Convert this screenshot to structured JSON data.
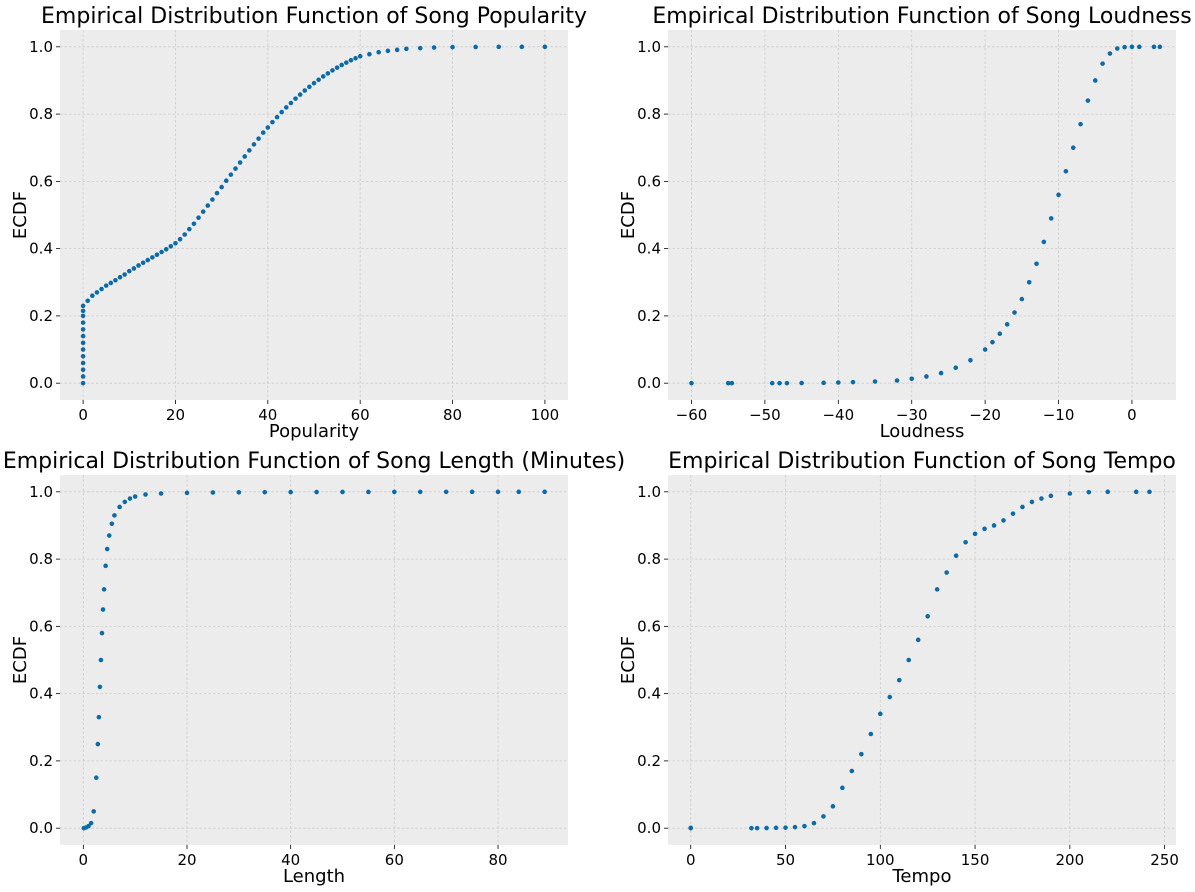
{
  "chart_data": [
    {
      "type": "scatter",
      "title": "Empirical Distribution Function of Song Popularity",
      "xlabel": "Popularity",
      "ylabel": "ECDF",
      "xlim": [
        -5,
        105
      ],
      "ylim": [
        -0.05,
        1.05
      ],
      "xticks": [
        0,
        20,
        40,
        60,
        80,
        100
      ],
      "xtick_labels": [
        "0",
        "20",
        "40",
        "60",
        "80",
        "100"
      ],
      "yticks": [
        0,
        0.2,
        0.4,
        0.6,
        0.8,
        1.0
      ],
      "ytick_labels": [
        "0.0",
        "0.2",
        "0.4",
        "0.6",
        "0.8",
        "1.0"
      ],
      "grid": true,
      "color": "#0d6aa8",
      "points": [
        [
          0,
          0
        ],
        [
          0,
          0.02
        ],
        [
          0,
          0.04
        ],
        [
          0,
          0.06
        ],
        [
          0,
          0.08
        ],
        [
          0,
          0.1
        ],
        [
          0,
          0.12
        ],
        [
          0,
          0.14
        ],
        [
          0,
          0.16
        ],
        [
          0,
          0.18
        ],
        [
          0,
          0.2
        ],
        [
          0,
          0.215
        ],
        [
          0,
          0.23
        ],
        [
          1,
          0.245
        ],
        [
          2,
          0.26
        ],
        [
          3,
          0.27
        ],
        [
          4,
          0.28
        ],
        [
          5,
          0.29
        ],
        [
          6,
          0.298
        ],
        [
          7,
          0.306
        ],
        [
          8,
          0.315
        ],
        [
          9,
          0.323
        ],
        [
          10,
          0.333
        ],
        [
          11,
          0.341
        ],
        [
          12,
          0.35
        ],
        [
          13,
          0.358
        ],
        [
          14,
          0.366
        ],
        [
          15,
          0.374
        ],
        [
          16,
          0.382
        ],
        [
          17,
          0.39
        ],
        [
          18,
          0.398
        ],
        [
          19,
          0.407
        ],
        [
          20,
          0.416
        ],
        [
          21,
          0.428
        ],
        [
          22,
          0.442
        ],
        [
          23,
          0.458
        ],
        [
          24,
          0.474
        ],
        [
          25,
          0.492
        ],
        [
          26,
          0.51
        ],
        [
          27,
          0.528
        ],
        [
          28,
          0.546
        ],
        [
          29,
          0.565
        ],
        [
          30,
          0.583
        ],
        [
          31,
          0.602
        ],
        [
          32,
          0.62
        ],
        [
          33,
          0.638
        ],
        [
          34,
          0.656
        ],
        [
          35,
          0.674
        ],
        [
          36,
          0.692
        ],
        [
          37,
          0.71
        ],
        [
          38,
          0.727
        ],
        [
          39,
          0.745
        ],
        [
          40,
          0.76
        ],
        [
          41,
          0.776
        ],
        [
          42,
          0.791
        ],
        [
          43,
          0.806
        ],
        [
          44,
          0.82
        ],
        [
          45,
          0.833
        ],
        [
          46,
          0.846
        ],
        [
          47,
          0.858
        ],
        [
          48,
          0.87
        ],
        [
          49,
          0.881
        ],
        [
          50,
          0.892
        ],
        [
          51,
          0.902
        ],
        [
          52,
          0.912
        ],
        [
          53,
          0.921
        ],
        [
          54,
          0.93
        ],
        [
          55,
          0.938
        ],
        [
          56,
          0.946
        ],
        [
          57,
          0.953
        ],
        [
          58,
          0.96
        ],
        [
          59,
          0.966
        ],
        [
          60,
          0.972
        ],
        [
          62,
          0.978
        ],
        [
          64,
          0.984
        ],
        [
          66,
          0.988
        ],
        [
          68,
          0.991
        ],
        [
          70,
          0.994
        ],
        [
          73,
          0.996
        ],
        [
          76,
          0.998
        ],
        [
          80,
          0.999
        ],
        [
          85,
          0.9995
        ],
        [
          90,
          1.0
        ],
        [
          95,
          1.0
        ],
        [
          100,
          1.0
        ]
      ]
    },
    {
      "type": "scatter",
      "title": "Empirical Distribution Function of Song Loudness",
      "xlabel": "Loudness",
      "ylabel": "ECDF",
      "xlim": [
        -63.2,
        6.0
      ],
      "ylim": [
        -0.05,
        1.05
      ],
      "xticks": [
        -60,
        -50,
        -40,
        -30,
        -20,
        -10,
        0
      ],
      "xtick_labels": [
        "−60",
        "−50",
        "−40",
        "−30",
        "−20",
        "−10",
        "0"
      ],
      "yticks": [
        0,
        0.2,
        0.4,
        0.6,
        0.8,
        1.0
      ],
      "ytick_labels": [
        "0.0",
        "0.2",
        "0.4",
        "0.6",
        "0.8",
        "1.0"
      ],
      "grid": true,
      "color": "#0d6aa8",
      "points": [
        [
          -60,
          0
        ],
        [
          -55,
          0
        ],
        [
          -54.5,
          0
        ],
        [
          -49,
          0
        ],
        [
          -48,
          0
        ],
        [
          -47,
          0
        ],
        [
          -45,
          0.0005
        ],
        [
          -42,
          0.001
        ],
        [
          -40,
          0.002
        ],
        [
          -38,
          0.003
        ],
        [
          -35,
          0.005
        ],
        [
          -32,
          0.008
        ],
        [
          -30,
          0.013
        ],
        [
          -28,
          0.02
        ],
        [
          -26,
          0.03
        ],
        [
          -24,
          0.046
        ],
        [
          -22,
          0.068
        ],
        [
          -20,
          0.1
        ],
        [
          -19,
          0.122
        ],
        [
          -18,
          0.147
        ],
        [
          -17,
          0.175
        ],
        [
          -16,
          0.21
        ],
        [
          -15,
          0.25
        ],
        [
          -14,
          0.3
        ],
        [
          -13,
          0.355
        ],
        [
          -12,
          0.42
        ],
        [
          -11,
          0.49
        ],
        [
          -10,
          0.56
        ],
        [
          -9,
          0.63
        ],
        [
          -8,
          0.7
        ],
        [
          -7,
          0.77
        ],
        [
          -6,
          0.84
        ],
        [
          -5,
          0.9
        ],
        [
          -4,
          0.95
        ],
        [
          -3,
          0.98
        ],
        [
          -2,
          0.995
        ],
        [
          -1,
          0.999
        ],
        [
          0,
          1.0
        ],
        [
          1,
          1.0
        ],
        [
          3,
          1.0
        ],
        [
          3.8,
          1.0
        ]
      ]
    },
    {
      "type": "scatter",
      "title": "Empirical Distribution Function of Song Length (Minutes)",
      "xlabel": "Length",
      "ylabel": "ECDF",
      "xlim": [
        -4.5,
        93.5
      ],
      "ylim": [
        -0.05,
        1.05
      ],
      "xticks": [
        0,
        20,
        40,
        60,
        80
      ],
      "xtick_labels": [
        "0",
        "20",
        "40",
        "60",
        "80"
      ],
      "yticks": [
        0,
        0.2,
        0.4,
        0.6,
        0.8,
        1.0
      ],
      "ytick_labels": [
        "0.0",
        "0.2",
        "0.4",
        "0.6",
        "0.8",
        "1.0"
      ],
      "grid": true,
      "color": "#0d6aa8",
      "points": [
        [
          0.1,
          0
        ],
        [
          0.5,
          0.002
        ],
        [
          1,
          0.006
        ],
        [
          1.5,
          0.015
        ],
        [
          2,
          0.05
        ],
        [
          2.5,
          0.15
        ],
        [
          2.8,
          0.25
        ],
        [
          3,
          0.33
        ],
        [
          3.2,
          0.42
        ],
        [
          3.4,
          0.5
        ],
        [
          3.6,
          0.58
        ],
        [
          3.8,
          0.65
        ],
        [
          4,
          0.71
        ],
        [
          4.3,
          0.78
        ],
        [
          4.6,
          0.83
        ],
        [
          5,
          0.87
        ],
        [
          5.5,
          0.905
        ],
        [
          6,
          0.93
        ],
        [
          7,
          0.955
        ],
        [
          8,
          0.97
        ],
        [
          9,
          0.98
        ],
        [
          10,
          0.986
        ],
        [
          12,
          0.992
        ],
        [
          15,
          0.995
        ],
        [
          20,
          0.997
        ],
        [
          25,
          0.998
        ],
        [
          30,
          0.9985
        ],
        [
          35,
          0.999
        ],
        [
          40,
          0.9992
        ],
        [
          45,
          0.9994
        ],
        [
          50,
          0.9995
        ],
        [
          55,
          0.9996
        ],
        [
          60,
          0.9997
        ],
        [
          65,
          0.9998
        ],
        [
          70,
          0.9998
        ],
        [
          75,
          0.9999
        ],
        [
          80,
          0.9999
        ],
        [
          84,
          1.0
        ],
        [
          89,
          1.0
        ]
      ]
    },
    {
      "type": "scatter",
      "title": "Empirical Distribution Function of Song Tempo",
      "xlabel": "Tempo",
      "ylabel": "ECDF",
      "xlim": [
        -12,
        256
      ],
      "ylim": [
        -0.05,
        1.05
      ],
      "xticks": [
        0,
        50,
        100,
        150,
        200,
        250
      ],
      "xtick_labels": [
        "0",
        "50",
        "100",
        "150",
        "200",
        "250"
      ],
      "yticks": [
        0,
        0.2,
        0.4,
        0.6,
        0.8,
        1.0
      ],
      "ytick_labels": [
        "0.0",
        "0.2",
        "0.4",
        "0.6",
        "0.8",
        "1.0"
      ],
      "grid": true,
      "color": "#0d6aa8",
      "points": [
        [
          0,
          0
        ],
        [
          0,
          0.001
        ],
        [
          32,
          0
        ],
        [
          35,
          0
        ],
        [
          40,
          0.0005
        ],
        [
          45,
          0.001
        ],
        [
          50,
          0.0015
        ],
        [
          55,
          0.003
        ],
        [
          60,
          0.006
        ],
        [
          65,
          0.015
        ],
        [
          70,
          0.035
        ],
        [
          75,
          0.065
        ],
        [
          80,
          0.12
        ],
        [
          85,
          0.17
        ],
        [
          90,
          0.22
        ],
        [
          95,
          0.28
        ],
        [
          100,
          0.34
        ],
        [
          105,
          0.39
        ],
        [
          110,
          0.44
        ],
        [
          115,
          0.5
        ],
        [
          120,
          0.56
        ],
        [
          125,
          0.63
        ],
        [
          130,
          0.71
        ],
        [
          135,
          0.76
        ],
        [
          140,
          0.81
        ],
        [
          145,
          0.85
        ],
        [
          150,
          0.875
        ],
        [
          155,
          0.89
        ],
        [
          160,
          0.9
        ],
        [
          165,
          0.915
        ],
        [
          170,
          0.935
        ],
        [
          175,
          0.955
        ],
        [
          180,
          0.97
        ],
        [
          185,
          0.98
        ],
        [
          190,
          0.988
        ],
        [
          200,
          0.995
        ],
        [
          210,
          0.999
        ],
        [
          220,
          1.0
        ],
        [
          235,
          1.0
        ],
        [
          242,
          1.0
        ]
      ]
    }
  ]
}
